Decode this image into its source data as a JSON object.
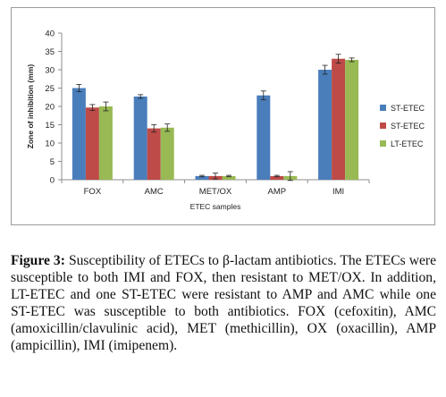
{
  "chart_data": {
    "type": "bar",
    "categories": [
      "FOX",
      "AMC",
      "MET/OX",
      "AMP",
      "IMI"
    ],
    "series": [
      {
        "name": "ST-ETEC",
        "values": [
          25,
          22.7,
          1,
          23,
          30
        ],
        "errors": [
          1,
          0.5,
          0.2,
          1.2,
          1.2
        ],
        "color": "#4a7ebb"
      },
      {
        "name": "ST-ETEC",
        "values": [
          19.7,
          14,
          1,
          1,
          33
        ],
        "errors": [
          0.8,
          1,
          0.8,
          0.2,
          1.2
        ],
        "color": "#be4b48"
      },
      {
        "name": "LT-ETEC",
        "values": [
          20,
          14.2,
          1,
          1,
          32.7
        ],
        "errors": [
          1.2,
          1,
          0.2,
          1.2,
          0.5
        ],
        "color": "#98b954"
      }
    ],
    "yticks": [
      0,
      5,
      10,
      15,
      20,
      25,
      30,
      35,
      40
    ],
    "ylim": [
      0,
      40
    ],
    "xlabel": "ETEC samples",
    "ylabel": "Zone of inhibition (mm)",
    "legend_position": "right",
    "grid": false
  },
  "caption": {
    "label": "Figure 3:",
    "text": " Susceptibility of ETECs to β-lactam antibiotics. The ETECs were susceptible to both IMI and FOX, then resistant to MET/OX. In addition, LT-ETEC and one ST-ETEC were resistant to AMP and AMC while one ST-ETEC was susceptible to both antibiotics. FOX (cefoxitin), AMC (amoxicillin/clavulinic acid), MET (methicillin), OX (oxacillin), AMP (ampicillin), IMI (imipenem)."
  }
}
